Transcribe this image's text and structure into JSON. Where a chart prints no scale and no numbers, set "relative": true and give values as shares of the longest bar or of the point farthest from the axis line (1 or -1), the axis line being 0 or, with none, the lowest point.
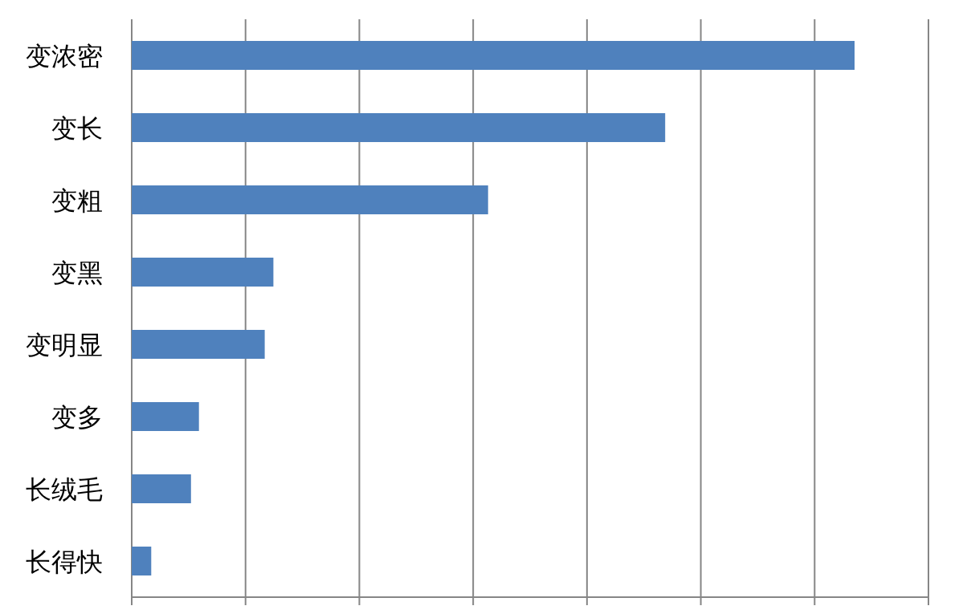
{
  "chart_data": {
    "type": "bar",
    "orientation": "horizontal",
    "relative": true,
    "grid": "x",
    "color": "#4f81bd",
    "categories": [
      "变浓密",
      "变长",
      "变粗",
      "变黑",
      "变明显",
      "变多",
      "长绒毛",
      "长得快"
    ],
    "values": [
      1,
      0.738,
      0.493,
      0.196,
      0.184,
      0.093,
      0.082,
      0.027
    ]
  }
}
